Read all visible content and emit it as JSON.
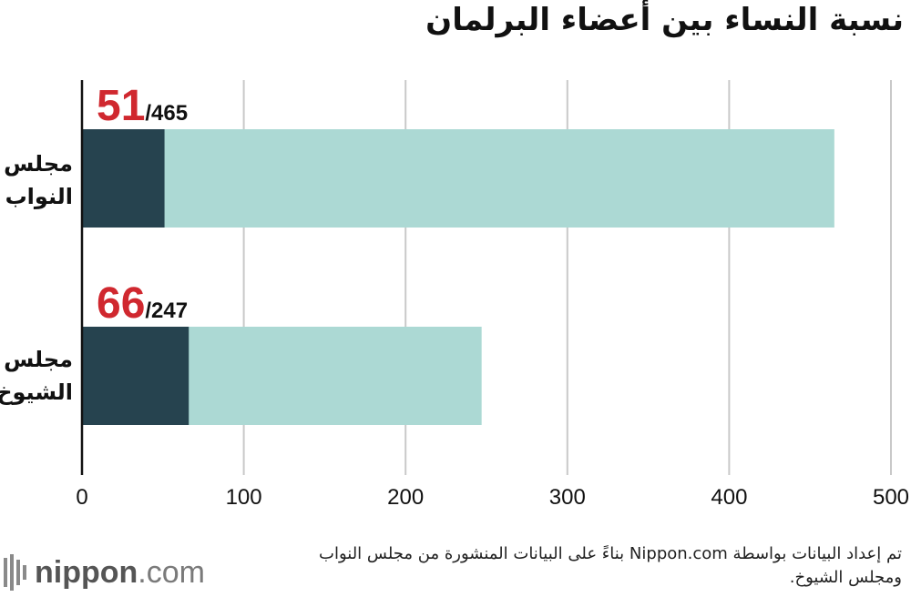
{
  "chart_data": {
    "type": "bar",
    "orientation": "horizontal",
    "stacked": true,
    "title": "نسبة النساء بين أعضاء البرلمان",
    "categories": [
      "مجلس النواب",
      "مجلس الشيوخ"
    ],
    "series": [
      {
        "values": [
          51,
          66
        ],
        "color": "#26434f"
      },
      {
        "values": [
          465,
          247
        ],
        "color": "#acd9d4",
        "is_total": true
      }
    ],
    "data_labels": [
      {
        "highlight": "51",
        "rest": "/465"
      },
      {
        "highlight": "66",
        "rest": "/247"
      }
    ],
    "xlim": [
      0,
      500
    ],
    "xticks": [
      0,
      100,
      200,
      300,
      400,
      500
    ],
    "grid": true,
    "label_color": "#d0282f"
  },
  "source": "تم إعداد البيانات بواسطة Nippon.com بناءً على البيانات المنشورة من مجلس النواب ومجلس الشيوخ.",
  "logo": {
    "brand": "nippon",
    "suffix": ".com",
    "icon": "nippon-logo-icon"
  }
}
